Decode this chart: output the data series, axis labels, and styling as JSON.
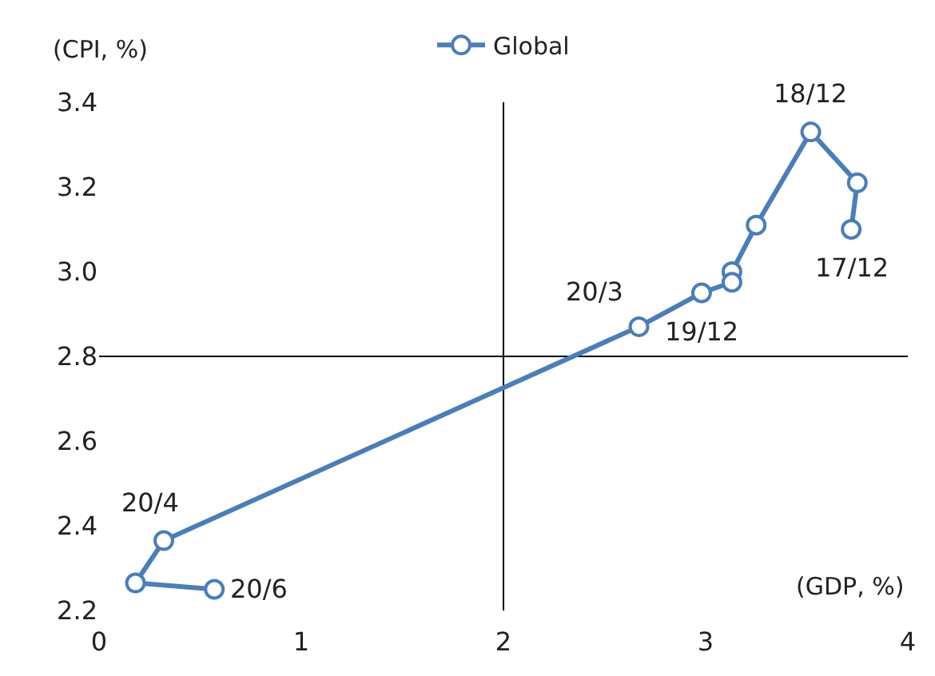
{
  "chart_data": {
    "type": "line",
    "xlabel": "(GDP, %)",
    "ylabel": "(CPI, %)",
    "xlim": [
      0,
      4
    ],
    "xticks": [
      0,
      1,
      2,
      3,
      4
    ],
    "ylim": [
      2.2,
      3.4
    ],
    "yticks": [
      2.2,
      2.4,
      2.6,
      2.8,
      {
        "value": 3,
        "label": "3.0"
      },
      3.2,
      3.4
    ],
    "series": [
      {
        "name": "Global",
        "color": "#4a7ebb",
        "x": [
          3.72,
          3.75,
          3.52,
          3.25,
          3.13,
          3.13,
          2.98,
          2.67,
          0.32,
          0.18,
          0.57
        ],
        "values": [
          3.1,
          3.21,
          3.33,
          3.11,
          3.0,
          2.975,
          2.95,
          2.87,
          2.365,
          2.265,
          2.25
        ]
      }
    ],
    "ref_lines": [
      {
        "axis": "x",
        "value": 2,
        "color": "#000000"
      },
      {
        "axis": "y",
        "value": 2.8,
        "color": "#000000"
      }
    ],
    "annotations": [
      {
        "text": "17/12",
        "x": 3.72,
        "y": 3.1
      },
      {
        "text": "18/12",
        "x": 3.52,
        "y": 3.33
      },
      {
        "text": "19/12",
        "x": 2.98,
        "y": 2.95
      },
      {
        "text": "20/3",
        "x": 2.67,
        "y": 2.87
      },
      {
        "text": "20/4",
        "x": 0.32,
        "y": 2.365
      },
      {
        "text": "20/6",
        "x": 0.57,
        "y": 2.25
      }
    ],
    "marker": "circle",
    "line_style": "solid",
    "grid": false,
    "legend": "top"
  }
}
